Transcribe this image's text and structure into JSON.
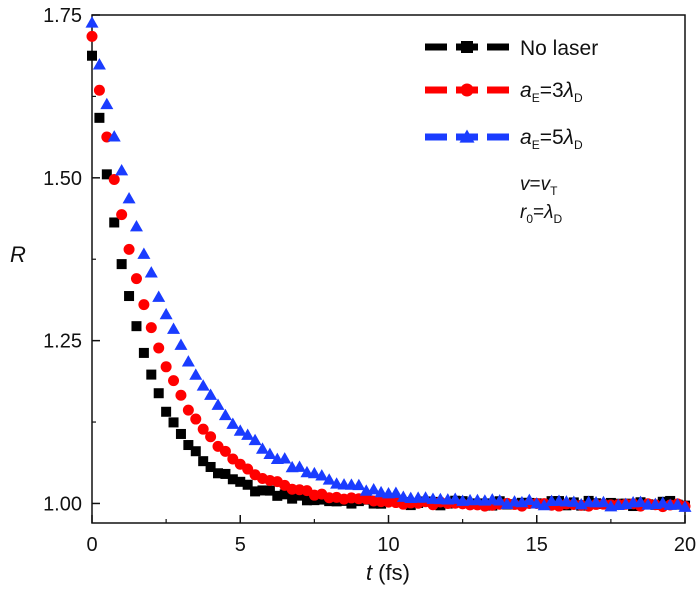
{
  "chart_data": {
    "type": "scatter",
    "xlabel": {
      "var": "t",
      "unit": "(fs)"
    },
    "ylabel": "R",
    "xlim": [
      0,
      20
    ],
    "ylim": [
      0.97,
      1.75
    ],
    "xticks": [
      0,
      5,
      10,
      15,
      20
    ],
    "yticks": [
      1.0,
      1.25,
      1.5,
      1.75
    ],
    "x_tick_labels": [
      "0",
      "5",
      "10",
      "15",
      "20"
    ],
    "y_tick_labels": [
      "1.00",
      "1.25",
      "1.50",
      "1.75"
    ],
    "x_step": 0.25,
    "series": [
      {
        "name": "No laser",
        "marker": "square",
        "color": "#000000",
        "x_start": 0,
        "x_end": 20,
        "y_start": 1.69,
        "y_end": 1.0,
        "tau": 1.6,
        "noise": 0.004
      },
      {
        "name": "aE=3λD",
        "marker": "circle",
        "color": "#ff0000",
        "x_start": 0,
        "x_end": 20,
        "y_start": 1.72,
        "y_end": 0.997,
        "tau": 2.05,
        "noise": 0.003
      },
      {
        "name": "aE=5λD",
        "marker": "triangle",
        "color": "#1a3cff",
        "x_start": 0,
        "x_end": 20,
        "y_start": 1.74,
        "y_end": 0.998,
        "tau": 2.7,
        "noise": 0.004
      }
    ],
    "legend": {
      "position": "top-right",
      "entries": [
        {
          "main": "No laser"
        },
        {
          "var": "a",
          "sub": "E",
          "rest": "=3",
          "lam": "λ",
          "lamsub": "D"
        },
        {
          "var": "a",
          "sub": "E",
          "rest": "=5",
          "lam": "λ",
          "lamsub": "D"
        }
      ]
    },
    "annotations": [
      {
        "var": "v",
        "eq": "=",
        "var2": "v",
        "sub2": "T"
      },
      {
        "var": "r",
        "sub": "0",
        "eq": "=",
        "lam": "λ",
        "lamsub": "D"
      }
    ]
  }
}
